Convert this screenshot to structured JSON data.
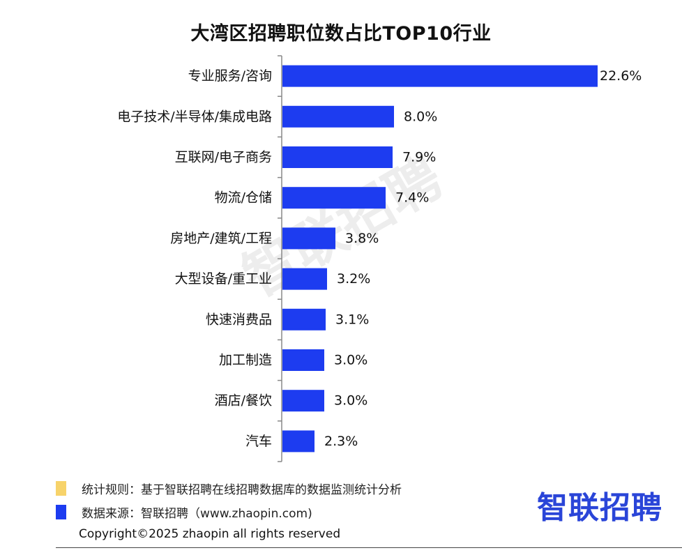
{
  "chart_data": {
    "type": "bar",
    "orientation": "horizontal",
    "title": "大湾区招聘职位数占比TOP10行业",
    "categories": [
      "专业服务/咨询",
      "电子技术/半导体/集成电路",
      "互联网/电子商务",
      "物流/仓储",
      "房地产/建筑/工程",
      "大型设备/重工业",
      "快速消费品",
      "加工制造",
      "酒店/餐饮",
      "汽车"
    ],
    "values": [
      22.6,
      8.0,
      7.9,
      7.4,
      3.8,
      3.2,
      3.1,
      3.0,
      3.0,
      2.3
    ],
    "data_labels": [
      "22.6%",
      "8.0%",
      "7.9%",
      "7.4%",
      "3.8%",
      "3.2%",
      "3.1%",
      "3.0%",
      "3.0%",
      "2.3%"
    ],
    "xlabel": "",
    "ylabel": "",
    "xlim": [
      0,
      22.6
    ],
    "grid": false,
    "bar_color": "#1d3cf0"
  },
  "footer": {
    "rule_note": "统计规则：基于智联招聘在线招聘数据库的数据监测统计分析",
    "source_note": "数据来源：智联招聘（www.zhaopin.com)",
    "copyright": "Copyright©2025 zhaopin all rights reserved",
    "rule_color": "#f7d36a",
    "source_color": "#1d3cf0"
  },
  "branding": {
    "logo": "智联招聘",
    "watermark": "智联招聘"
  }
}
